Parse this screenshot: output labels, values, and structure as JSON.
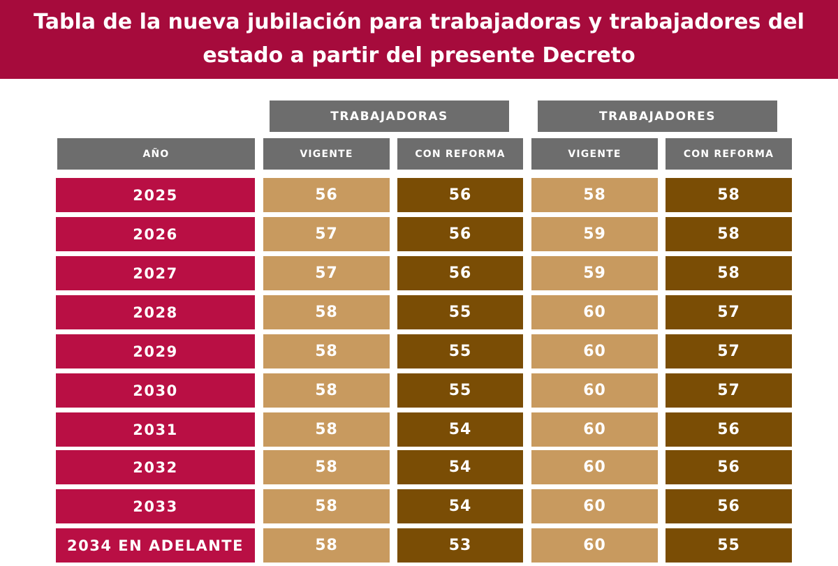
{
  "title": "Tabla de la nueva jubilación para trabajadoras y trabajadores del estado a partir del presente Decreto",
  "colors": {
    "banner": "#a60b3c",
    "header_gray": "#6d6d6d",
    "year_red": "#b90f44",
    "vigente_tan": "#c89a5f",
    "reforma_brown": "#7a4d05"
  },
  "chart_data": {
    "type": "table",
    "title": "Tabla de la nueva jubilación para trabajadoras y trabajadores del estado a partir del presente Decreto",
    "groups": [
      "TRABAJADORAS",
      "TRABAJADORES"
    ],
    "columns": [
      "AÑO",
      "VIGENTE",
      "CON REFORMA",
      "VIGENTE",
      "CON REFORMA"
    ],
    "rows": [
      {
        "year": "2025",
        "values": [
          56,
          56,
          58,
          58
        ]
      },
      {
        "year": "2026",
        "values": [
          57,
          56,
          59,
          58
        ]
      },
      {
        "year": "2027",
        "values": [
          57,
          56,
          59,
          58
        ]
      },
      {
        "year": "2028",
        "values": [
          58,
          55,
          60,
          57
        ]
      },
      {
        "year": "2029",
        "values": [
          58,
          55,
          60,
          57
        ]
      },
      {
        "year": "2030",
        "values": [
          58,
          55,
          60,
          57
        ]
      },
      {
        "year": "2031",
        "values": [
          58,
          54,
          60,
          56
        ]
      },
      {
        "year": "2032",
        "values": [
          58,
          54,
          60,
          56
        ]
      },
      {
        "year": "2033",
        "values": [
          58,
          54,
          60,
          56
        ]
      },
      {
        "year": "2034 EN ADELANTE",
        "values": [
          58,
          53,
          60,
          55
        ]
      }
    ]
  }
}
